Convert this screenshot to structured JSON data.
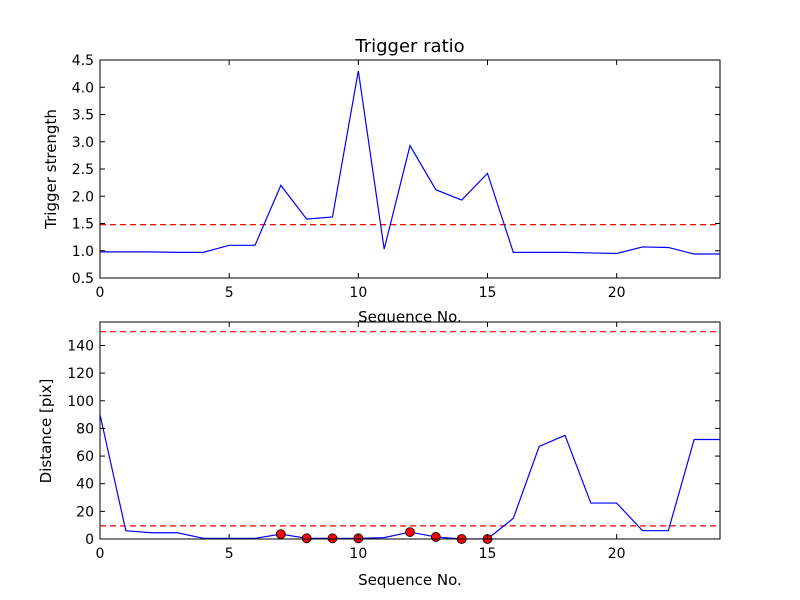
{
  "chart_data": [
    {
      "type": "line",
      "title": "Trigger ratio",
      "xlabel": "Sequence No.",
      "ylabel": "Trigger strength",
      "xlim": [
        0,
        24
      ],
      "ylim": [
        0.5,
        4.5
      ],
      "xticks": [
        "0",
        "5",
        "10",
        "15",
        "20"
      ],
      "yticks": [
        "0.5",
        "1.0",
        "1.5",
        "2.0",
        "2.5",
        "3.0",
        "3.5",
        "4.0",
        "4.5"
      ],
      "grid": false,
      "x": [
        0,
        1,
        2,
        3,
        4,
        5,
        6,
        7,
        8,
        9,
        10,
        11,
        12,
        13,
        14,
        15,
        16,
        17,
        18,
        19,
        20,
        21,
        22,
        23,
        24
      ],
      "series": [
        {
          "style": "solid",
          "color": "#0000ff",
          "values": [
            0.98,
            0.98,
            0.98,
            0.97,
            0.97,
            1.1,
            1.1,
            2.2,
            1.58,
            1.62,
            4.3,
            1.03,
            2.93,
            2.12,
            1.93,
            2.42,
            0.97,
            0.97,
            0.97,
            0.96,
            0.95,
            1.07,
            1.06,
            0.94,
            0.94
          ]
        }
      ],
      "reference_lines": [
        {
          "y": 1.48,
          "color": "#ff0000",
          "style": "dashed"
        }
      ]
    },
    {
      "type": "line",
      "title": "",
      "xlabel": "Sequence No.",
      "ylabel": "Distance [pix]",
      "xlim": [
        0,
        24
      ],
      "ylim": [
        0,
        157
      ],
      "xticks": [
        "0",
        "5",
        "10",
        "15",
        "20"
      ],
      "yticks": [
        "0",
        "20",
        "40",
        "60",
        "80",
        "100",
        "120",
        "140"
      ],
      "grid": false,
      "x": [
        0,
        1,
        2,
        3,
        4,
        5,
        6,
        7,
        8,
        9,
        10,
        11,
        12,
        13,
        14,
        15,
        16,
        17,
        18,
        19,
        20,
        21,
        22,
        23,
        24
      ],
      "series": [
        {
          "style": "solid",
          "color": "#0000ff",
          "values": [
            90,
            6,
            4.5,
            4.5,
            0.5,
            0.5,
            0.5,
            3.5,
            0.5,
            0.5,
            0.5,
            1,
            5,
            1.5,
            0,
            0,
            15,
            67,
            75,
            26,
            26,
            6,
            6,
            72,
            72
          ]
        }
      ],
      "markers": {
        "color": "#ff0000",
        "edge": "#000000",
        "x": [
          7,
          8,
          9,
          10,
          12,
          13,
          14,
          15
        ],
        "y": [
          3.5,
          0.5,
          0.5,
          0.5,
          5,
          1.5,
          0,
          0
        ]
      },
      "reference_lines": [
        {
          "y": 150,
          "color": "#ff0000",
          "style": "dashed"
        },
        {
          "y": 9.5,
          "color": "#ff0000",
          "style": "dashed"
        }
      ]
    }
  ]
}
